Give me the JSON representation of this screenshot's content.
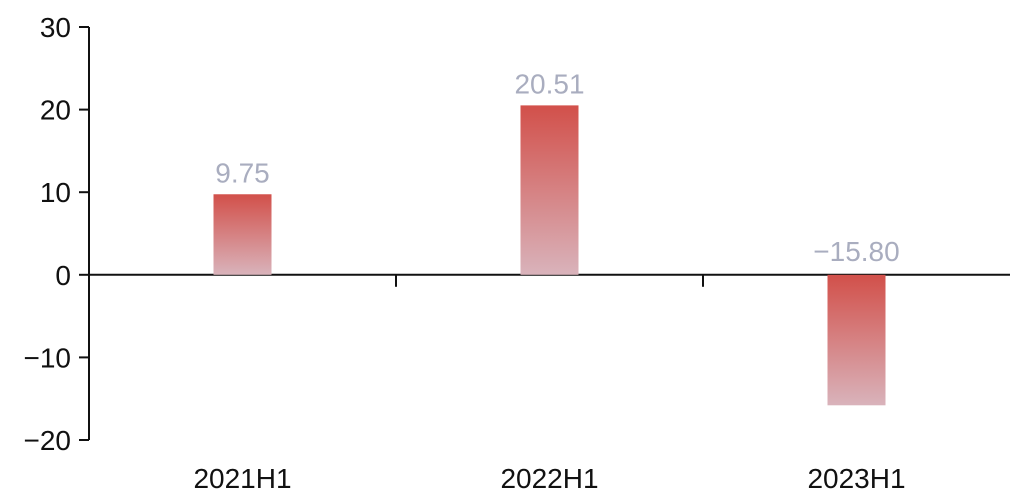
{
  "chart_data": {
    "type": "bar",
    "categories": [
      "2021H1",
      "2022H1",
      "2023H1"
    ],
    "values": [
      9.75,
      20.51,
      -15.8
    ],
    "data_labels": [
      "9.75",
      "20.51",
      "−15.80"
    ],
    "ylim": [
      -20,
      30
    ],
    "yticks": [
      30,
      20,
      10,
      0,
      -10,
      -20
    ],
    "ytick_labels": [
      "30",
      "20",
      "10",
      "0",
      "−10",
      "−20"
    ],
    "grid": false,
    "colors": {
      "bar_top": "#d2504a",
      "bar_bottom": "#d9b3bb",
      "axis": "#111111",
      "data_label": "#a9adbf"
    }
  }
}
